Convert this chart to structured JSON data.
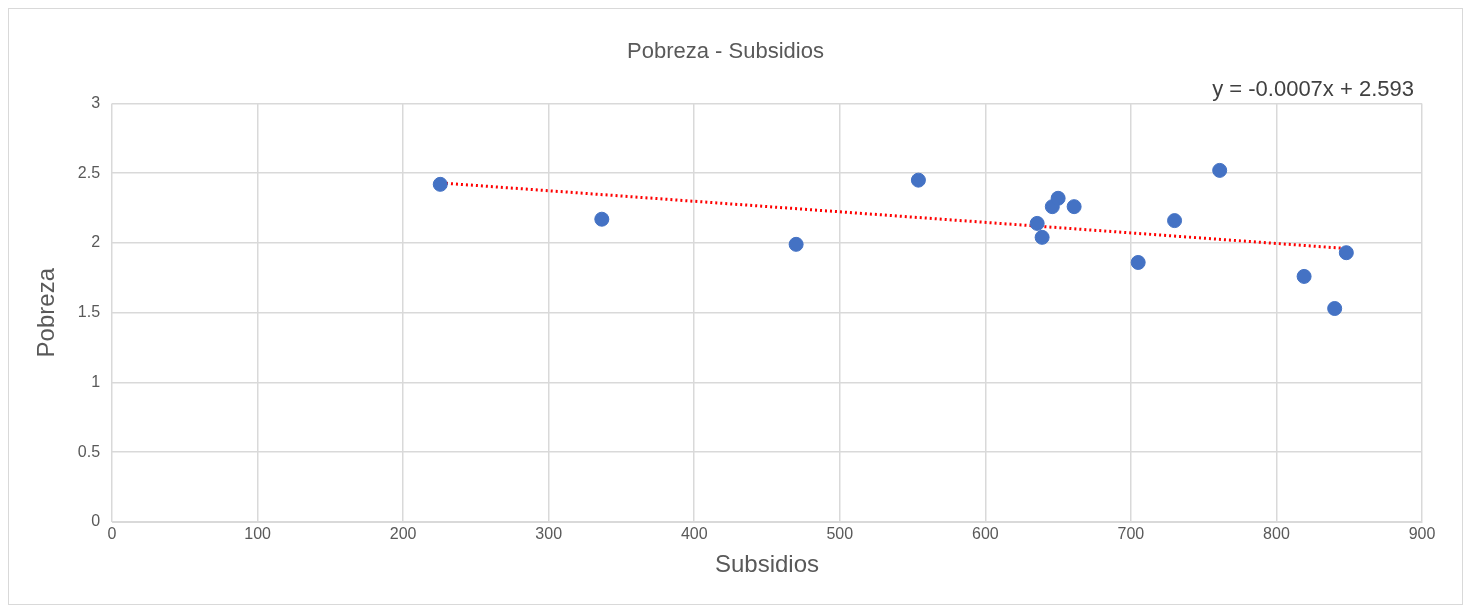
{
  "chart_data": {
    "type": "scatter",
    "title": "Pobreza - Subsidios",
    "xlabel": "Subsidios",
    "ylabel": "Pobreza",
    "annotations": [
      "y = -0.0007x + 2.593"
    ],
    "series": [
      {
        "color": "#4472c4",
        "x": [
          225.5,
          336.5,
          470,
          554,
          635.6,
          639,
          646,
          650,
          661,
          705,
          730,
          761,
          819,
          840,
          848
        ],
        "values": [
          2.42,
          2.17,
          1.99,
          2.45,
          2.14,
          2.04,
          2.26,
          2.32,
          2.26,
          1.86,
          2.16,
          2.52,
          1.76,
          1.53,
          1.93
        ],
        "marker": "circle"
      },
      {
        "type": "line",
        "color": "#ff0000",
        "x": [
          226,
          848
        ],
        "values": [
          2.43,
          1.96
        ],
        "marker": "none",
        "line_style": "dotted"
      }
    ],
    "xlim": [
      0,
      900
    ],
    "xticks": [
      0,
      100,
      200,
      300,
      400,
      500,
      600,
      700,
      800,
      900
    ],
    "ylim": [
      0,
      3
    ],
    "yticks": [
      0,
      0.5,
      1,
      1.5,
      2,
      2.5,
      3
    ],
    "grid": true,
    "legend": false
  }
}
